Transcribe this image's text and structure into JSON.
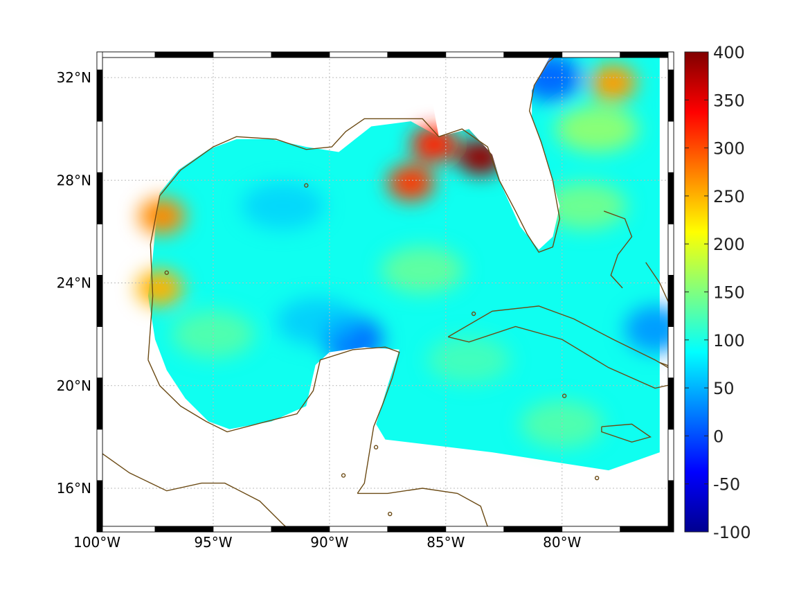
{
  "chart_data": {
    "type": "heatmap",
    "title": "",
    "xlabel": "",
    "ylabel": "",
    "x_axis": {
      "range": [
        -100,
        -75.2
      ],
      "ticks": [
        -100,
        -95,
        -90,
        -85,
        -80
      ],
      "tick_labels": [
        "100°W",
        "95°W",
        "90°W",
        "85°W",
        "80°W"
      ]
    },
    "y_axis": {
      "range": [
        14.3,
        33
      ],
      "ticks": [
        16,
        20,
        24,
        28,
        32
      ],
      "tick_labels": [
        "16°N",
        "20°N",
        "24°N",
        "28°N",
        "32°N"
      ]
    },
    "grid": true,
    "colorbar": {
      "colormap": "jet",
      "range": [
        -100,
        400
      ],
      "ticks": [
        -100,
        -50,
        0,
        50,
        100,
        150,
        200,
        250,
        300,
        350,
        400
      ],
      "tick_labels": [
        "-100",
        "-50",
        "0",
        "50",
        "100",
        "150",
        "200",
        "250",
        "300",
        "350",
        "400"
      ]
    },
    "features": {
      "hotspots": [
        {
          "lon": -83.5,
          "lat": 28.9,
          "value": 390
        },
        {
          "lon": -85.5,
          "lat": 29.4,
          "value": 320
        },
        {
          "lon": -86.5,
          "lat": 27.9,
          "value": 310
        },
        {
          "lon": -97.2,
          "lat": 26.6,
          "value": 270
        },
        {
          "lon": -97.3,
          "lat": 23.8,
          "value": 250
        },
        {
          "lon": -77.8,
          "lat": 31.8,
          "value": 260
        }
      ],
      "coolspots": [
        {
          "lon": -89.0,
          "lat": 21.8,
          "value": 20
        },
        {
          "lon": -80.5,
          "lat": 32.0,
          "value": 15
        },
        {
          "lon": -76.0,
          "lat": 22.2,
          "value": 40
        }
      ],
      "background_value": 95
    },
    "coastline_color": "#6b4a14"
  }
}
